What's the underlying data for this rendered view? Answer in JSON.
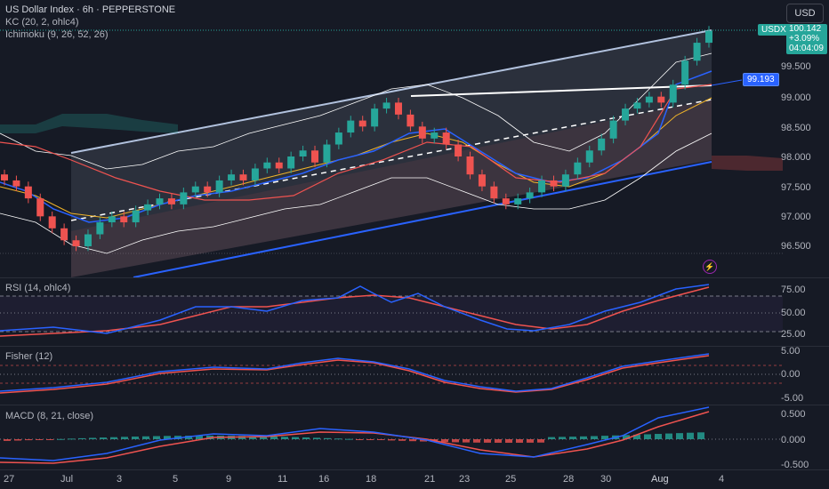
{
  "header": {
    "symbol_line": "US Dollar Index · 6h · PEPPERSTONE",
    "indicator_kc": "KC (20, 2, ohlc4)",
    "indicator_ichimoku": "Ichimoku (9, 26, 52, 26)"
  },
  "currency_button": "USD",
  "price_tags": {
    "symbol": "USDX",
    "last_price": "100.142",
    "change": "+3.09%",
    "countdown": "04:04:09",
    "line_level": "99.193"
  },
  "price_axis": [
    "99.500",
    "99.000",
    "98.500",
    "98.000",
    "97.500",
    "97.000",
    "96.500"
  ],
  "panes": {
    "rsi": {
      "title": "RSI (14, ohlc4)",
      "axis": [
        "75.00",
        "50.00",
        "25.00"
      ]
    },
    "fisher": {
      "title": "Fisher (12)",
      "axis": [
        "5.00",
        "0.00",
        "-5.00"
      ]
    },
    "macd": {
      "title": "MACD (8, 21, close)",
      "axis": [
        "0.500",
        "0.000",
        "-0.500"
      ]
    }
  },
  "time_axis": [
    "27",
    "Jul",
    "3",
    "5",
    "9",
    "11",
    "16",
    "18",
    "21",
    "23",
    "25",
    "28",
    "30",
    "Aug",
    "4"
  ],
  "colors": {
    "background": "#161a25",
    "up": "#26a69a",
    "down": "#ef5350",
    "channel": "#b2c2de",
    "channel_lower": "#2962ff",
    "rsi_line": "#2962ff",
    "rsi_signal": "#ef5350"
  },
  "chart_data": {
    "type": "line",
    "price_range": [
      96.2,
      100.3
    ],
    "last_price": 100.142,
    "channel_levels": {
      "upper_end": 100.14,
      "lower_end": 97.85,
      "mid_line_level": 99.193
    }
  }
}
